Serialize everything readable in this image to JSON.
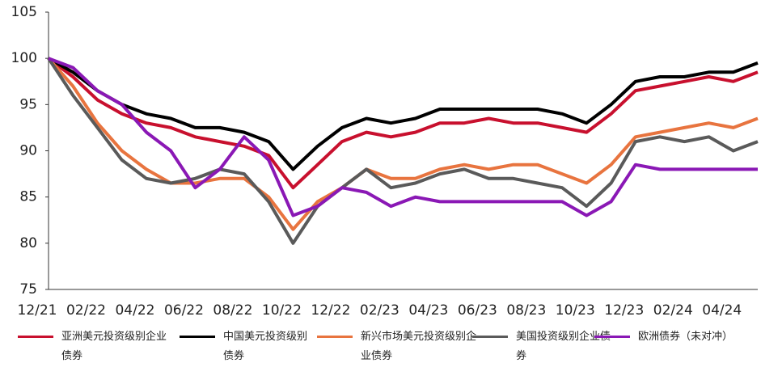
{
  "chart_data": {
    "type": "line",
    "categories": [
      "12/21",
      null,
      "02/22",
      null,
      "04/22",
      null,
      "06/22",
      null,
      "08/22",
      null,
      "10/22",
      null,
      "12/22",
      null,
      "02/23",
      null,
      "04/23",
      null,
      "06/23",
      null,
      "08/23",
      null,
      "10/23",
      null,
      "12/23",
      null,
      "02/24",
      null,
      "04/24",
      null
    ],
    "ylim": [
      75,
      105
    ],
    "yticks": [
      75,
      80,
      85,
      90,
      95,
      100,
      105
    ],
    "series": [
      {
        "name": "亚洲美元投资级别企业债券",
        "color": "#c8102e",
        "values": [
          100,
          98,
          95.5,
          94,
          93,
          92.5,
          91.5,
          91,
          90.5,
          89.5,
          86,
          88.5,
          91,
          92,
          91.5,
          92,
          93,
          93,
          93.5,
          93,
          93,
          92.5,
          92,
          94,
          96.5,
          97,
          97.5,
          98,
          97.5,
          98.5
        ]
      },
      {
        "name": "中国美元投资级别债券",
        "color": "#000000",
        "values": [
          100,
          98.5,
          96.5,
          95,
          94,
          93.5,
          92.5,
          92.5,
          92,
          91,
          88,
          90.5,
          92.5,
          93.5,
          93,
          93.5,
          94.5,
          94.5,
          94.5,
          94.5,
          94.5,
          94,
          93,
          95,
          97.5,
          98,
          98,
          98.5,
          98.5,
          99.5
        ]
      },
      {
        "name": "新兴市场美元投资级别企业债券",
        "color": "#e8743f",
        "values": [
          100,
          97,
          93,
          90,
          88,
          86.5,
          86.5,
          87,
          87,
          85,
          81.5,
          84.5,
          86,
          88,
          87,
          87,
          88,
          88.5,
          88,
          88.5,
          88.5,
          87.5,
          86.5,
          88.5,
          91.5,
          92,
          92.5,
          93,
          92.5,
          93.5
        ]
      },
      {
        "name": "美国投资级别企业债券",
        "color": "#5a5a5a",
        "values": [
          100,
          96,
          92.5,
          89,
          87,
          86.5,
          87,
          88,
          87.5,
          84.5,
          80,
          84,
          86,
          88,
          86,
          86.5,
          87.5,
          88,
          87,
          87,
          86.5,
          86,
          84,
          86.5,
          91,
          91.5,
          91,
          91.5,
          90,
          91
        ]
      },
      {
        "name": "欧洲债券（未对冲）",
        "color": "#8a18b5",
        "values": [
          100,
          99,
          96.5,
          95,
          92,
          90,
          86,
          88,
          91.5,
          89,
          83,
          84,
          86,
          85.5,
          84,
          85,
          84.5,
          84.5,
          84.5,
          84.5,
          84.5,
          84.5,
          83,
          84.5,
          88.5,
          88,
          88,
          88,
          88,
          88
        ]
      }
    ]
  }
}
